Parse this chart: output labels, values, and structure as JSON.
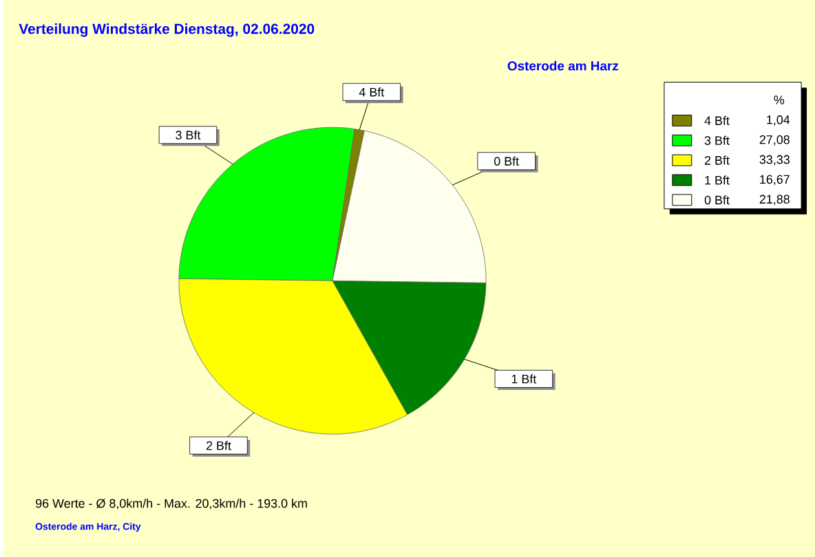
{
  "chart_data": {
    "type": "pie",
    "title": "Verteilung Windstärke  Dienstag, 02.06.2020",
    "subtitle": "Osterode am Harz",
    "categories": [
      "4 Bft",
      "3 Bft",
      "2 Bft",
      "1 Bft",
      "0 Bft"
    ],
    "values": [
      1.04,
      27.08,
      33.33,
      16.67,
      21.88
    ],
    "value_labels": [
      "1,04",
      "27,08",
      "33,33",
      "16,67",
      "21,88"
    ],
    "colors": [
      "#808000",
      "#00ff00",
      "#ffff00",
      "#008000",
      "#fffff0"
    ],
    "legend": "top right",
    "legend_title": "%",
    "annotations": [
      "96 Werte   -   Ø 8,0km/h  -  Max. 20,3km/h   -   193.0 km",
      "Osterode am Harz, City"
    ]
  }
}
